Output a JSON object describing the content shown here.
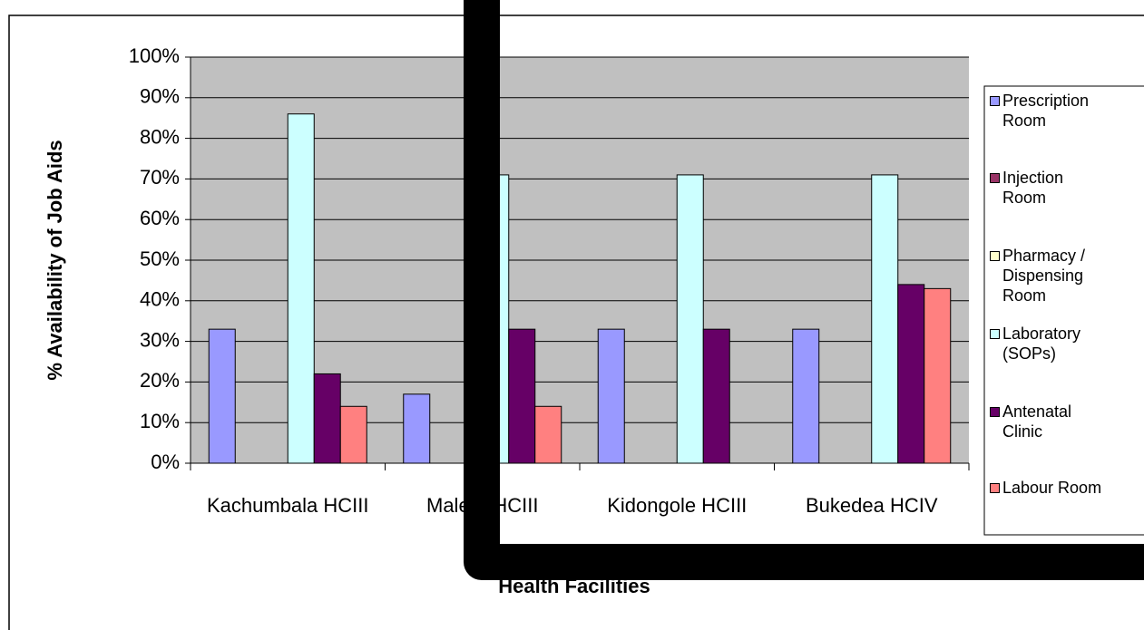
{
  "chart_data": {
    "type": "bar",
    "y_label": "% Availability of Job Aids",
    "x_label": "Health Facilities",
    "categories": [
      "Kachumbala HCIII",
      "Malera HCIII",
      "Kidongole HCIII",
      "Bukedea HCIV"
    ],
    "series": [
      {
        "name": "Prescription Room",
        "color": "#9999ff",
        "values": [
          33,
          17,
          33,
          33
        ]
      },
      {
        "name": "Injection Room",
        "color": "#993366",
        "values": [
          0,
          0,
          0,
          0
        ]
      },
      {
        "name": "Pharmacy / Dispensing Room",
        "color": "#ffffcc",
        "values": [
          0,
          0,
          0,
          0
        ]
      },
      {
        "name": "Laboratory (SOPs)",
        "color": "#ccffff",
        "values": [
          86,
          71,
          71,
          71
        ]
      },
      {
        "name": "Antenatal Clinic",
        "color": "#660066",
        "values": [
          22,
          33,
          33,
          44
        ]
      },
      {
        "name": "Labour Room",
        "color": "#ff8080",
        "values": [
          14,
          14,
          0,
          43
        ]
      }
    ],
    "ylim": [
      0,
      100
    ],
    "yticks": [
      {
        "value": 0,
        "label": "0%"
      },
      {
        "value": 10,
        "label": "10%"
      },
      {
        "value": 20,
        "label": "20%"
      },
      {
        "value": 30,
        "label": "30%"
      },
      {
        "value": 40,
        "label": "40%"
      },
      {
        "value": 50,
        "label": "50%"
      },
      {
        "value": 60,
        "label": "60%"
      },
      {
        "value": 70,
        "label": "70%"
      },
      {
        "value": 80,
        "label": "80%"
      },
      {
        "value": 90,
        "label": "90%"
      },
      {
        "value": 100,
        "label": "100%"
      }
    ],
    "grid": true,
    "legend": "right"
  }
}
